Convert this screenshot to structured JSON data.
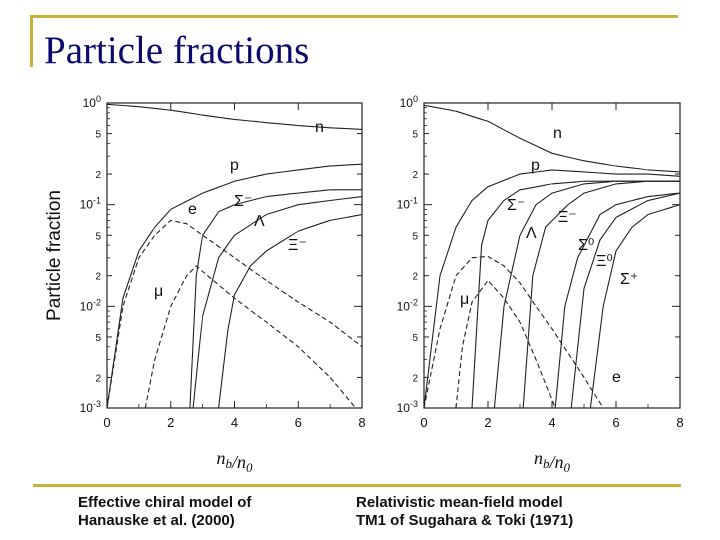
{
  "slide": {
    "title": "Particle fractions",
    "caption_left": [
      "Effective chiral model of",
      "Hanauske et al. (2000)"
    ],
    "caption_right": [
      "Relativistic mean-field model",
      "TM1 of Sugahara & Toki (1971)"
    ],
    "accent_color": "#c9b23a",
    "title_color": "#0a0a6e"
  },
  "chart_data": [
    {
      "type": "line",
      "ylabel": "Particle fraction",
      "xlabel": "n_b/n_0",
      "xlim": [
        0,
        8
      ],
      "ylim": [
        0.001,
        1
      ],
      "yscale": "log",
      "x_ticks": [
        "0",
        "2",
        "4",
        "6",
        "8"
      ],
      "y_ticks": [
        "10^0",
        "5",
        "2",
        "10^-1",
        "5",
        "2",
        "10^-2",
        "5",
        "2",
        "10^-3"
      ],
      "series": [
        {
          "name": "n",
          "x": [
            0,
            1,
            2,
            3,
            4,
            5,
            6,
            7,
            8
          ],
          "y": [
            0.97,
            0.92,
            0.85,
            0.76,
            0.69,
            0.64,
            0.6,
            0.57,
            0.55
          ]
        },
        {
          "name": "p",
          "x": [
            0,
            0.5,
            1,
            1.5,
            2,
            3,
            4,
            5,
            6,
            7,
            8
          ],
          "y": [
            0.001,
            0.012,
            0.035,
            0.06,
            0.09,
            0.13,
            0.17,
            0.2,
            0.22,
            0.24,
            0.25
          ]
        },
        {
          "name": "e",
          "x": [
            0,
            0.5,
            1,
            1.5,
            2,
            2.5,
            3,
            4,
            5,
            6,
            7,
            8
          ],
          "y": [
            0.001,
            0.01,
            0.03,
            0.05,
            0.07,
            0.065,
            0.05,
            0.03,
            0.018,
            0.011,
            0.007,
            0.004
          ]
        },
        {
          "name": "μ",
          "x": [
            1.2,
            1.5,
            2,
            2.5,
            2.8,
            3,
            4,
            5,
            6,
            7,
            7.8
          ],
          "y": [
            0.001,
            0.003,
            0.01,
            0.02,
            0.025,
            0.022,
            0.012,
            0.007,
            0.004,
            0.002,
            0.001
          ]
        },
        {
          "name": "Σ⁻",
          "x": [
            2.6,
            2.8,
            3,
            3.5,
            4,
            5,
            6,
            7,
            8
          ],
          "y": [
            0.001,
            0.02,
            0.05,
            0.085,
            0.1,
            0.12,
            0.13,
            0.14,
            0.14
          ]
        },
        {
          "name": "Λ",
          "x": [
            2.7,
            3,
            3.5,
            4,
            5,
            6,
            7,
            8
          ],
          "y": [
            0.001,
            0.008,
            0.03,
            0.05,
            0.08,
            0.1,
            0.11,
            0.12
          ]
        },
        {
          "name": "Ξ⁻",
          "x": [
            3.5,
            3.8,
            4,
            4.5,
            5,
            6,
            7,
            8
          ],
          "y": [
            0.001,
            0.006,
            0.013,
            0.025,
            0.035,
            0.055,
            0.07,
            0.08
          ]
        }
      ],
      "series_labels": [
        "n",
        "p",
        "e",
        "Σ-",
        "Λ",
        "Ξ-",
        "μ"
      ]
    },
    {
      "type": "line",
      "xlabel": "n_b/n_0",
      "xlim": [
        0,
        8
      ],
      "ylim": [
        0.001,
        1
      ],
      "yscale": "log",
      "x_ticks": [
        "0",
        "2",
        "4",
        "6",
        "8"
      ],
      "y_ticks": [
        "10^0",
        "5",
        "2",
        "10^-1",
        "5",
        "2",
        "10^-2",
        "5",
        "2",
        "10^-3"
      ],
      "series": [
        {
          "name": "n",
          "x": [
            0,
            1,
            2,
            3,
            4,
            5,
            6,
            7,
            8
          ],
          "y": [
            0.95,
            0.83,
            0.66,
            0.45,
            0.32,
            0.27,
            0.24,
            0.22,
            0.21
          ]
        },
        {
          "name": "p",
          "x": [
            0,
            0.5,
            1,
            1.5,
            2,
            3,
            4,
            5,
            6,
            7,
            8
          ],
          "y": [
            0.001,
            0.02,
            0.06,
            0.11,
            0.15,
            0.2,
            0.22,
            0.21,
            0.2,
            0.2,
            0.19
          ]
        },
        {
          "name": "e",
          "x": [
            0,
            0.5,
            1,
            1.5,
            2,
            2.5,
            3,
            3.5,
            4,
            5,
            5.6
          ],
          "y": [
            0.001,
            0.006,
            0.02,
            0.03,
            0.031,
            0.025,
            0.017,
            0.01,
            0.006,
            0.002,
            0.001
          ]
        },
        {
          "name": "μ",
          "x": [
            1.0,
            1.2,
            1.5,
            2,
            2.5,
            3,
            3.5,
            4.1
          ],
          "y": [
            0.001,
            0.004,
            0.011,
            0.018,
            0.012,
            0.007,
            0.003,
            0.001
          ]
        },
        {
          "name": "Σ⁻",
          "x": [
            1.5,
            1.8,
            2,
            2.5,
            3,
            4,
            5,
            6,
            7,
            8
          ],
          "y": [
            0.001,
            0.04,
            0.07,
            0.11,
            0.14,
            0.16,
            0.17,
            0.17,
            0.17,
            0.17
          ]
        },
        {
          "name": "Λ",
          "x": [
            2.2,
            2.5,
            3,
            3.5,
            4,
            5,
            6,
            7,
            8
          ],
          "y": [
            0.001,
            0.01,
            0.05,
            0.1,
            0.13,
            0.16,
            0.17,
            0.17,
            0.17
          ]
        },
        {
          "name": "Ξ⁻",
          "x": [
            3.1,
            3.4,
            3.8,
            4.5,
            5,
            6,
            7,
            8
          ],
          "y": [
            0.001,
            0.02,
            0.06,
            0.1,
            0.13,
            0.16,
            0.17,
            0.17
          ]
        },
        {
          "name": "Σ⁰",
          "x": [
            4.1,
            4.4,
            4.8,
            5.5,
            6,
            7,
            8
          ],
          "y": [
            0.001,
            0.01,
            0.03,
            0.08,
            0.1,
            0.12,
            0.13
          ]
        },
        {
          "name": "Ξ⁰",
          "x": [
            4.6,
            5,
            5.5,
            6,
            7,
            8
          ],
          "y": [
            0.001,
            0.015,
            0.045,
            0.075,
            0.11,
            0.13
          ]
        },
        {
          "name": "Σ⁺",
          "x": [
            5.2,
            5.6,
            6,
            6.5,
            7,
            8
          ],
          "y": [
            0.001,
            0.01,
            0.035,
            0.06,
            0.08,
            0.1
          ]
        }
      ],
      "series_labels": [
        "n",
        "p",
        "Σ-",
        "Ξ-",
        "Λ",
        "Σ0",
        "Ξ0",
        "Σ+",
        "μ",
        "e"
      ]
    }
  ]
}
